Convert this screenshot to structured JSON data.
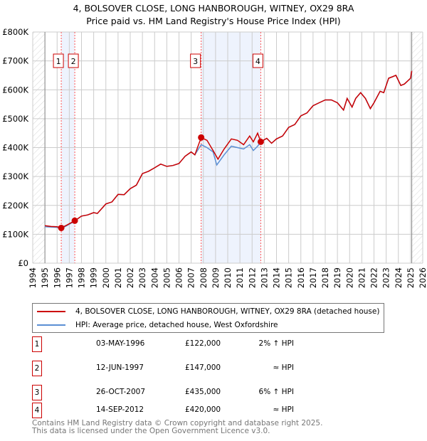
{
  "chart_data": {
    "type": "line",
    "title": "4, BOLSOVER CLOSE, LONG HANBOROUGH, WITNEY, OX29 8RA",
    "subtitle": "Price paid vs. HM Land Registry's House Price Index (HPI)",
    "xlim": [
      1994,
      2026
    ],
    "ylim": [
      0,
      800000
    ],
    "y_ticks": [
      {
        "v": 0,
        "l": "£0"
      },
      {
        "v": 100000,
        "l": "£100K"
      },
      {
        "v": 200000,
        "l": "£200K"
      },
      {
        "v": 300000,
        "l": "£300K"
      },
      {
        "v": 400000,
        "l": "£400K"
      },
      {
        "v": 500000,
        "l": "£500K"
      },
      {
        "v": 600000,
        "l": "£600K"
      },
      {
        "v": 700000,
        "l": "£700K"
      },
      {
        "v": 800000,
        "l": "£800K"
      }
    ],
    "x_ticks": [
      "1994",
      "1995",
      "1996",
      "1997",
      "1998",
      "1999",
      "2000",
      "2001",
      "2002",
      "2003",
      "2004",
      "2005",
      "2006",
      "2007",
      "2008",
      "2009",
      "2010",
      "2011",
      "2012",
      "2013",
      "2014",
      "2015",
      "2016",
      "2017",
      "2018",
      "2019",
      "2020",
      "2021",
      "2022",
      "2023",
      "2024",
      "2025",
      "2026"
    ],
    "data_range": [
      1995,
      2025.1
    ],
    "shaded_ranges": [
      [
        1996.34,
        1997.45
      ],
      [
        2007.82,
        2012.71
      ]
    ],
    "series": [
      {
        "name": "4, BOLSOVER CLOSE, LONG HANBOROUGH, WITNEY, OX29 8RA (detached house)",
        "color": "#cc0000",
        "x": [
          1995,
          1995.5,
          1996,
          1996.34,
          1996.8,
          1997.45,
          1998,
          1998.5,
          1999,
          1999.3,
          2000,
          2000.5,
          2001,
          2001.5,
          2002,
          2002.5,
          2003,
          2003.5,
          2004,
          2004.5,
          2005,
          2005.5,
          2006,
          2006.2,
          2006.5,
          2007,
          2007.3,
          2007.82,
          2008.3,
          2008.8,
          2009.2,
          2009.7,
          2010.3,
          2010.8,
          2011.3,
          2011.8,
          2012.1,
          2012.45,
          2012.71,
          2013.2,
          2013.6,
          2014,
          2014.5,
          2015,
          2015.5,
          2016,
          2016.5,
          2017,
          2017.5,
          2018,
          2018.5,
          2019,
          2019.5,
          2019.8,
          2020.2,
          2020.5,
          2020.9,
          2021.3,
          2021.7,
          2022,
          2022.5,
          2022.8,
          2023.2,
          2023.5,
          2023.8,
          2024.2,
          2024.5,
          2025,
          2025.1
        ],
        "y": [
          130000,
          127000,
          126000,
          122000,
          132000,
          147000,
          163000,
          167000,
          175000,
          172000,
          205000,
          212000,
          238000,
          237000,
          258000,
          270000,
          310000,
          318000,
          330000,
          343000,
          335000,
          338000,
          345000,
          355000,
          370000,
          385000,
          375000,
          435000,
          425000,
          390000,
          360000,
          395000,
          430000,
          425000,
          410000,
          440000,
          420000,
          450000,
          420000,
          432000,
          415000,
          430000,
          440000,
          470000,
          480000,
          510000,
          520000,
          545000,
          555000,
          565000,
          565000,
          555000,
          530000,
          570000,
          540000,
          570000,
          590000,
          570000,
          535000,
          555000,
          595000,
          590000,
          640000,
          645000,
          650000,
          615000,
          620000,
          640000,
          665000
        ]
      },
      {
        "name": "HPI: Average price, detached house, West Oxfordshire",
        "color": "#5b8fd4",
        "x": [
          1995,
          1995.5,
          1996,
          1996.34,
          1996.8,
          1997.45,
          1998,
          1998.5,
          1999,
          1999.3,
          2000,
          2000.5,
          2001,
          2001.5,
          2002,
          2002.5,
          2003,
          2003.5,
          2004,
          2004.5,
          2005,
          2005.5,
          2006,
          2006.2,
          2006.5,
          2007,
          2007.3,
          2007.82,
          2008.3,
          2008.8,
          2009.1,
          2009.7,
          2010.3,
          2010.8,
          2011.3,
          2011.8,
          2012.1,
          2012.45,
          2012.71,
          2013.2,
          2013.6,
          2014,
          2014.5,
          2015,
          2015.5,
          2016,
          2016.5,
          2017,
          2017.5,
          2018,
          2018.5,
          2019,
          2019.5,
          2019.8,
          2020.2,
          2020.5,
          2020.9,
          2021.3,
          2021.7,
          2022,
          2022.5,
          2022.8,
          2023.2,
          2023.5,
          2023.8,
          2024.2,
          2024.5,
          2025,
          2025.1
        ],
        "y": [
          126000,
          125000,
          124000,
          120000,
          130000,
          146000,
          163000,
          167000,
          175000,
          172000,
          205000,
          212000,
          238000,
          237000,
          258000,
          270000,
          310000,
          318000,
          330000,
          343000,
          335000,
          338000,
          345000,
          355000,
          370000,
          385000,
          375000,
          410000,
          400000,
          385000,
          340000,
          375000,
          405000,
          400000,
          395000,
          410000,
          390000,
          405000,
          420000,
          432000,
          415000,
          430000,
          440000,
          470000,
          480000,
          510000,
          520000,
          545000,
          555000,
          565000,
          565000,
          555000,
          530000,
          570000,
          540000,
          570000,
          590000,
          570000,
          535000,
          555000,
          595000,
          590000,
          640000,
          645000,
          650000,
          615000,
          620000,
          640000,
          662000
        ]
      }
    ],
    "sales": [
      {
        "n": "1",
        "x": 1996.34,
        "y": 122000,
        "date": "03-MAY-1996",
        "price": "£122,000",
        "hpi": "2% ↑ HPI"
      },
      {
        "n": "2",
        "x": 1997.45,
        "y": 147000,
        "date": "12-JUN-1997",
        "price": "£147,000",
        "hpi": "≈ HPI"
      },
      {
        "n": "3",
        "x": 2007.82,
        "y": 435000,
        "date": "26-OCT-2007",
        "price": "£435,000",
        "hpi": "6% ↑ HPI"
      },
      {
        "n": "4",
        "x": 2012.71,
        "y": 420000,
        "date": "14-SEP-2012",
        "price": "£420,000",
        "hpi": "≈ HPI"
      }
    ]
  },
  "footer": {
    "line1": "Contains HM Land Registry data © Crown copyright and database right 2025.",
    "line2": "This data is licensed under the Open Government Licence v3.0."
  }
}
